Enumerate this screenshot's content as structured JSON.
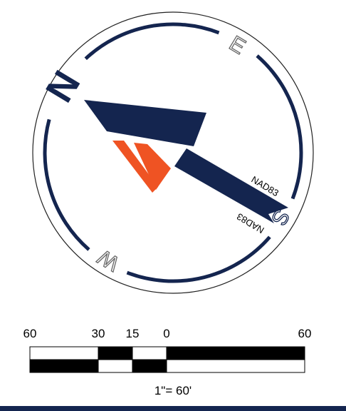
{
  "compass": {
    "north": "N",
    "east": "E",
    "south": "S",
    "west": "W",
    "datum_labels": [
      "NAD83",
      "NAD83"
    ]
  },
  "scale": {
    "labels": [
      "60",
      "30",
      "15",
      "0",
      "60"
    ],
    "caption": "1\"= 60'"
  }
}
